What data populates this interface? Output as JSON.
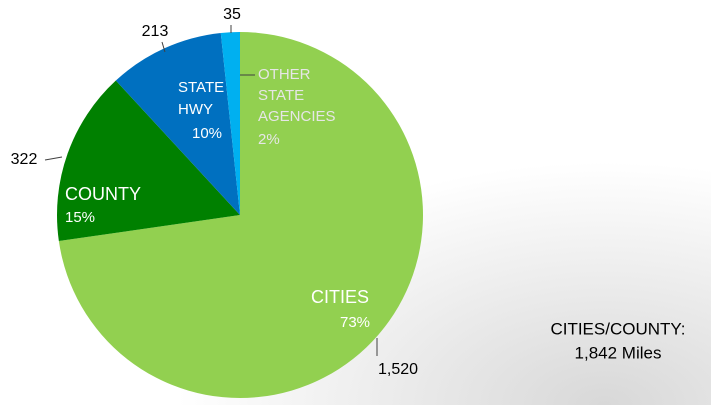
{
  "chart_data": {
    "type": "pie",
    "categories": [
      "CITIES",
      "COUNTY",
      "STATE HWY",
      "OTHER STATE AGENCIES"
    ],
    "values": [
      1520,
      322,
      213,
      35
    ],
    "value_labels": [
      "1,520",
      "322",
      "213",
      "35"
    ],
    "percent_labels": [
      "73%",
      "15%",
      "10%",
      "2%"
    ],
    "colors": [
      "#92d050",
      "#008000",
      "#0070c0",
      "#00b0f0"
    ],
    "annotation": [
      "CITIES/COUNTY:",
      "1,842 Miles"
    ]
  }
}
